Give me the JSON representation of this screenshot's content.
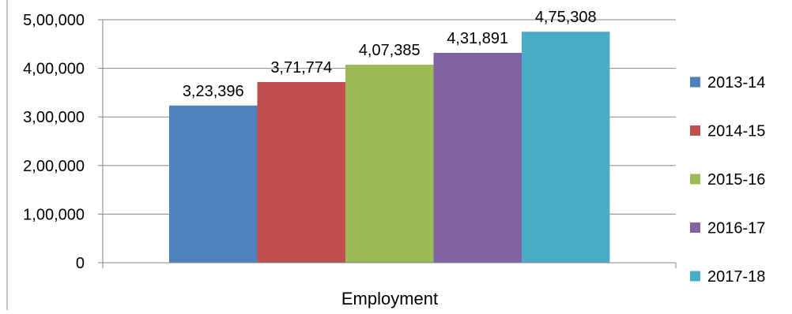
{
  "chart_data": {
    "type": "bar",
    "categories": [
      "Employment"
    ],
    "series": [
      {
        "name": "2013-14",
        "values": [
          323396
        ],
        "label": "3,23,396",
        "color": "#4F81BD"
      },
      {
        "name": "2014-15",
        "values": [
          371774
        ],
        "label": "3,71,774",
        "color": "#C0504D"
      },
      {
        "name": "2015-16",
        "values": [
          407385
        ],
        "label": "4,07,385",
        "color": "#9BBB59"
      },
      {
        "name": "2016-17",
        "values": [
          431891
        ],
        "label": "4,31,891",
        "color": "#8064A2"
      },
      {
        "name": "2017-18",
        "values": [
          475308
        ],
        "label": "4,75,308",
        "color": "#4BACC6"
      }
    ],
    "y_ticks": [
      {
        "value": 0,
        "label": "0"
      },
      {
        "value": 100000,
        "label": "1,00,000"
      },
      {
        "value": 200000,
        "label": "2,00,000"
      },
      {
        "value": 300000,
        "label": "3,00,000"
      },
      {
        "value": 400000,
        "label": "4,00,000"
      },
      {
        "value": 500000,
        "label": "5,00,000"
      }
    ],
    "ylim": [
      0,
      500000
    ],
    "xlabel": "Employment",
    "grid": true,
    "legend_position": "right"
  }
}
